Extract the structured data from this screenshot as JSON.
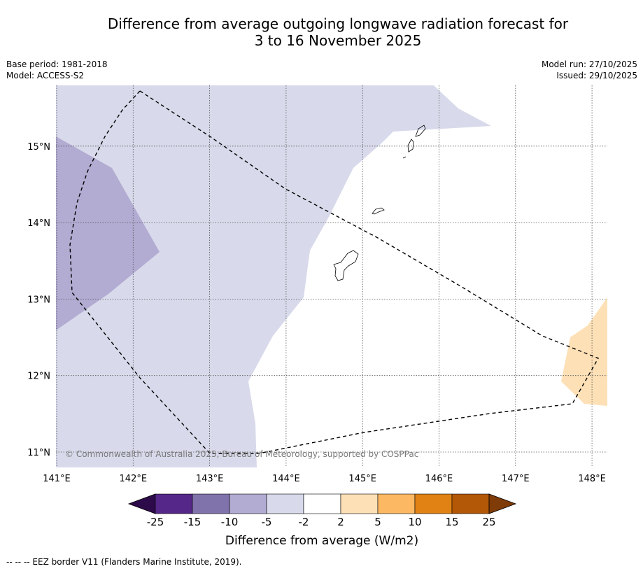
{
  "title": {
    "line1": "Difference from average outgoing longwave radiation forecast for",
    "line2": "3 to 16 November 2025"
  },
  "meta_left": {
    "base_period": "Base period: 1981-2018",
    "model": "Model: ACCESS-S2"
  },
  "meta_right": {
    "model_run": "Model run: 27/10/2025",
    "issued": "Issued: 29/10/2025"
  },
  "map": {
    "lon_labels": [
      "141°E",
      "142°E",
      "143°E",
      "144°E",
      "145°E",
      "146°E",
      "147°E",
      "148°E"
    ],
    "lat_labels": [
      "15°N",
      "14°N",
      "13°N",
      "12°N",
      "11°N"
    ],
    "lon_values": [
      141,
      142,
      143,
      144,
      145,
      146,
      147,
      148
    ],
    "lat_values": [
      15,
      14,
      13,
      12,
      11
    ],
    "lon_range": [
      141,
      148.2
    ],
    "lat_range": [
      10.8,
      15.8
    ],
    "credit": "© Commonwealth of Australia 2025, Bureau of Meteorology, supported by COSPPac"
  },
  "colorbar": {
    "title": "Difference from average (W/m2)",
    "tick_labels": [
      "-25",
      "-15",
      "-10",
      "-5",
      "-2",
      "2",
      "5",
      "10",
      "15",
      "25"
    ],
    "under_color": "#2d0a4a",
    "over_color": "#7f3b08",
    "segment_colors": [
      "#542788",
      "#8073ac",
      "#b2abd2",
      "#d8daeb",
      "#ffffff",
      "#fee0b6",
      "#fdb863",
      "#e08214",
      "#b35806"
    ]
  },
  "colors": {
    "light_purple": "#d8daeb",
    "mid_purple": "#b2abd2",
    "light_orange": "#fee0b6"
  },
  "legend_note": "-- -- -- EEZ border V11 (Flanders Marine Institute, 2019)."
}
